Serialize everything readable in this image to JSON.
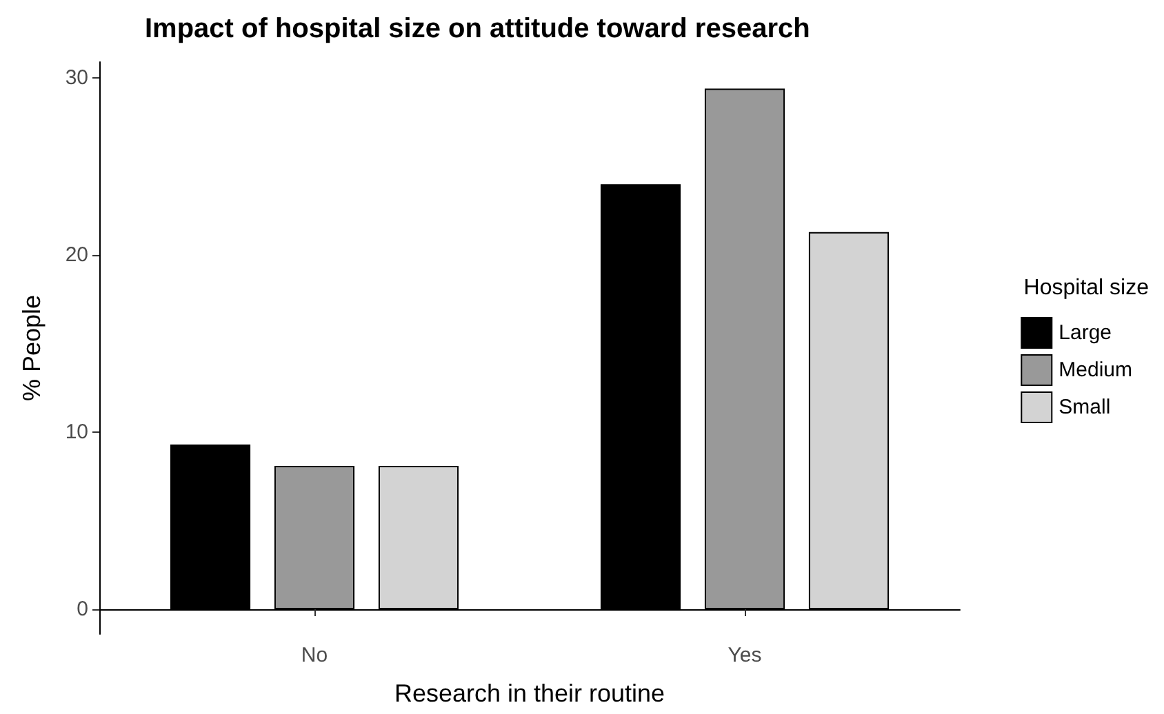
{
  "chart_data": {
    "type": "bar",
    "title": "Impact of hospital size on attitude toward research",
    "xlabel": "Research in their routine",
    "ylabel": "% People",
    "legend_title": "Hospital size",
    "categories": [
      "No",
      "Yes"
    ],
    "series": [
      {
        "name": "Large",
        "color": "#000000",
        "values": [
          9.3,
          24.0
        ]
      },
      {
        "name": "Medium",
        "color": "#999999",
        "values": [
          8.1,
          29.4
        ]
      },
      {
        "name": "Small",
        "color": "#d3d3d3",
        "values": [
          8.1,
          21.3
        ]
      }
    ],
    "ylim": [
      -1.4,
      30.9
    ],
    "yticks": [
      0,
      10,
      20,
      30
    ],
    "grid": false,
    "legend": "right"
  }
}
